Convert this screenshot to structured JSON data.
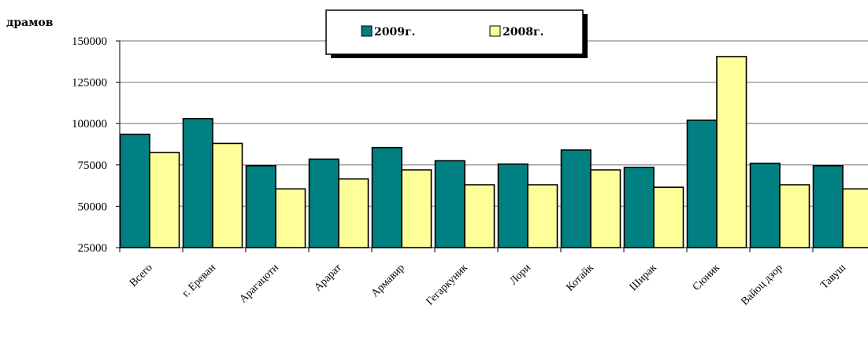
{
  "chart_data": {
    "type": "bar",
    "ylabel": "драмов",
    "ylim": [
      25000,
      150000
    ],
    "yticks": [
      "25000",
      "50000",
      "75000",
      "100000",
      "125000",
      "150000"
    ],
    "grid": true,
    "legend_position": "top-center",
    "categories": [
      "Всего",
      "г. Ереван",
      "Арагацотн",
      "Арарат",
      "Армавир",
      "Гегаркуник",
      "Лори",
      "Котайк",
      "Ширак",
      "Сюник",
      "Вайоц дзор",
      "Тавуш"
    ],
    "series": [
      {
        "name": "2009г.",
        "color": "#008080",
        "values": [
          93500,
          103000,
          74500,
          78500,
          85500,
          77500,
          75500,
          84000,
          73500,
          102000,
          76000,
          74500
        ]
      },
      {
        "name": "2008г.",
        "color": "#ffff99",
        "values": [
          82500,
          88000,
          60500,
          66500,
          72000,
          63000,
          63000,
          72000,
          61500,
          140500,
          63000,
          60500
        ]
      }
    ]
  }
}
